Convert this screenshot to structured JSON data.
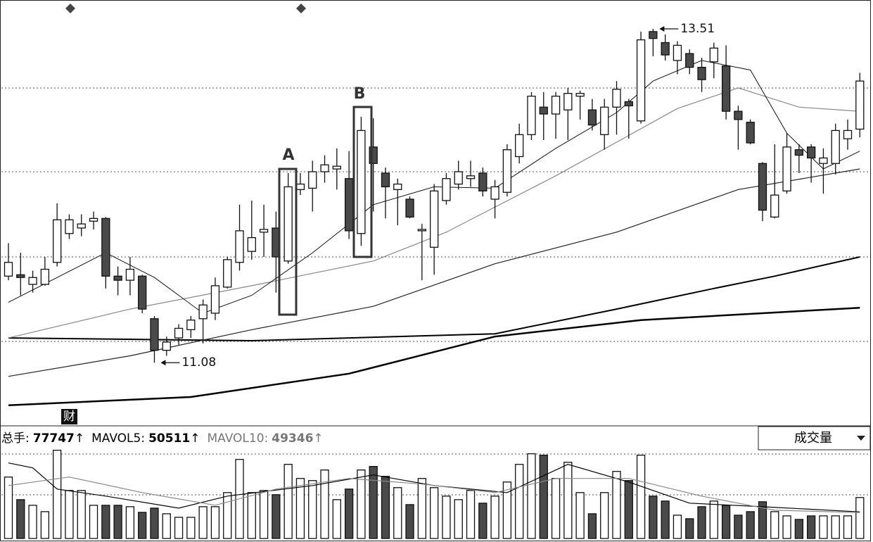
{
  "chart_data": [
    {
      "type": "candlestick",
      "open": [
        11.71,
        11.72,
        11.65,
        11.65,
        11.81,
        12.02,
        12.06,
        12.11,
        12.13,
        11.71,
        11.68,
        11.71,
        11.4,
        11.17,
        11.26,
        11.32,
        11.4,
        11.44,
        11.63,
        11.81,
        11.89,
        12.03,
        12.06,
        11.82,
        12.34,
        12.35,
        12.47,
        12.49,
        12.42,
        12.02,
        12.65,
        12.46,
        12.34,
        12.27,
        12.04,
        11.92,
        12.26,
        12.38,
        12.42,
        12.46,
        12.27,
        12.32,
        12.58,
        12.74,
        12.94,
        12.89,
        12.92,
        13.02,
        12.92,
        12.74,
        12.94,
        12.98,
        12.84,
        13.49,
        13.41,
        13.28,
        13.33,
        13.23,
        13.27,
        13.24,
        12.91,
        12.83,
        12.53,
        12.14,
        12.33,
        12.63,
        12.65,
        12.53,
        12.53,
        12.71,
        12.78
      ],
      "high": [
        11.95,
        11.88,
        11.75,
        11.85,
        12.24,
        12.16,
        12.16,
        12.18,
        12.14,
        11.78,
        11.85,
        11.72,
        11.42,
        11.27,
        11.36,
        11.42,
        11.54,
        11.7,
        11.85,
        12.23,
        12.26,
        12.23,
        12.18,
        12.46,
        12.46,
        12.55,
        12.59,
        12.64,
        12.62,
        12.87,
        12.86,
        12.5,
        12.42,
        12.29,
        12.09,
        12.38,
        12.46,
        12.55,
        12.55,
        12.5,
        12.41,
        12.67,
        12.82,
        13.05,
        13.05,
        13.05,
        13.08,
        13.06,
        13.0,
        13.0,
        13.13,
        13.0,
        13.49,
        13.51,
        13.47,
        13.42,
        13.36,
        13.3,
        13.41,
        13.39,
        12.95,
        12.85,
        12.54,
        12.67,
        12.75,
        12.67,
        12.67,
        12.64,
        12.82,
        12.85,
        13.19
      ],
      "low": [
        11.68,
        11.57,
        11.59,
        11.64,
        11.78,
        11.98,
        12.0,
        12.05,
        11.62,
        11.57,
        11.57,
        11.44,
        11.08,
        11.13,
        11.21,
        11.26,
        11.22,
        11.39,
        11.62,
        11.75,
        11.83,
        11.85,
        11.59,
        11.8,
        12.3,
        12.18,
        12.39,
        12.34,
        11.98,
        11.93,
        12.18,
        12.13,
        12.08,
        12.13,
        11.68,
        11.72,
        12.23,
        12.34,
        12.36,
        12.29,
        12.13,
        12.29,
        12.53,
        12.7,
        12.7,
        12.71,
        12.7,
        12.85,
        12.77,
        12.63,
        12.74,
        12.71,
        12.82,
        13.31,
        13.28,
        13.18,
        13.18,
        13.05,
        13.15,
        12.85,
        12.63,
        12.67,
        12.11,
        12.13,
        12.31,
        12.46,
        12.39,
        12.31,
        12.45,
        12.63,
        12.72
      ],
      "close": [
        11.81,
        11.7,
        11.7,
        11.76,
        12.12,
        12.12,
        12.09,
        12.13,
        11.71,
        11.68,
        11.76,
        11.47,
        11.17,
        11.23,
        11.33,
        11.39,
        11.5,
        11.64,
        11.83,
        12.04,
        11.99,
        12.05,
        11.85,
        12.36,
        12.38,
        12.47,
        12.52,
        12.51,
        12.04,
        12.77,
        12.53,
        12.36,
        12.38,
        12.14,
        12.05,
        12.33,
        12.42,
        12.47,
        12.44,
        12.33,
        12.36,
        12.63,
        12.74,
        13.02,
        12.89,
        13.02,
        13.04,
        13.04,
        12.81,
        12.94,
        13.07,
        12.95,
        13.43,
        13.44,
        13.32,
        13.39,
        13.23,
        13.14,
        13.37,
        12.91,
        12.85,
        12.68,
        12.19,
        12.3,
        12.65,
        12.59,
        12.57,
        12.57,
        12.77,
        12.77,
        13.13
      ],
      "ylim": [
        10.62,
        13.72
      ],
      "up_color": "#ffffff",
      "down_color": "#4a4a4a",
      "lines": [
        {
          "color": "#000000",
          "width": 2.5,
          "x": [
            0,
            15,
            28,
            40,
            52,
            70
          ],
          "values": [
            10.77,
            10.83,
            11.0,
            11.27,
            11.39,
            11.48
          ]
        },
        {
          "color": "#000000",
          "width": 2,
          "x": [
            0,
            20,
            40,
            50,
            58,
            63,
            70
          ],
          "values": [
            11.26,
            11.24,
            11.29,
            11.47,
            11.62,
            11.71,
            11.85
          ]
        },
        {
          "color": "#222222",
          "width": 1.2,
          "x": [
            0,
            10,
            20,
            30,
            40,
            50,
            60,
            70
          ],
          "values": [
            10.98,
            11.13,
            11.32,
            11.49,
            11.8,
            12.03,
            12.34,
            12.49
          ]
        },
        {
          "color": "#888888",
          "width": 1.2,
          "x": [
            0,
            10,
            20,
            30,
            36,
            45,
            55,
            60,
            65,
            70
          ],
          "values": [
            11.26,
            11.47,
            11.64,
            11.82,
            12.03,
            12.44,
            12.93,
            13.08,
            12.94,
            12.91
          ]
        },
        {
          "color": "#111111",
          "width": 1,
          "x": [
            0,
            8,
            12,
            16,
            20,
            25,
            30,
            35,
            40,
            45,
            50,
            53,
            57,
            61,
            64,
            67,
            70
          ],
          "values": [
            11.52,
            11.88,
            11.7,
            11.44,
            11.57,
            11.88,
            12.23,
            12.36,
            12.35,
            12.64,
            12.9,
            13.13,
            13.28,
            13.21,
            12.75,
            12.49,
            12.62
          ]
        }
      ],
      "annotations": [
        {
          "index": 53,
          "field": "high",
          "value": 13.51
        },
        {
          "index": 12,
          "field": "low",
          "value": 11.08
        }
      ],
      "boxes": [
        "A",
        "B"
      ],
      "marker": "财"
    },
    {
      "type": "bar",
      "values": [
        116600,
        73700,
        63000,
        50900,
        167500,
        91100,
        91100,
        63000,
        63000,
        63000,
        60300,
        49600,
        57600,
        46900,
        40200,
        40200,
        60300,
        60300,
        87100,
        150100,
        87100,
        91100,
        83100,
        140700,
        113900,
        109900,
        130000,
        73700,
        93800,
        130000,
        136700,
        117900,
        96500,
        64300,
        113900,
        96500,
        80400,
        73700,
        91100,
        67000,
        80400,
        107200,
        140700,
        160800,
        158100,
        113900,
        144700,
        87100,
        46900,
        87100,
        127300,
        109900,
        158100,
        80400,
        71000,
        44200,
        37500,
        60300,
        71000,
        63000,
        44200,
        50900,
        69700,
        50900,
        42900,
        36200,
        42900,
        42900,
        42900,
        42900,
        77747
      ],
      "ylim": [
        0,
        175000
      ],
      "lines": [
        {
          "color": "#000000",
          "width": 1.2,
          "x": [
            0,
            2,
            4,
            8,
            14,
            18,
            25,
            30,
            35,
            41,
            46,
            51,
            56,
            62,
            70
          ],
          "values": [
            143400,
            134000,
            93800,
            80400,
            57600,
            80400,
            100500,
            120600,
            100500,
            87100,
            140700,
            107200,
            67000,
            60300,
            50511
          ]
        },
        {
          "color": "#888888",
          "width": 1.2,
          "x": [
            0,
            5,
            11,
            17,
            22,
            28,
            34,
            40,
            45,
            51,
            57,
            63,
            70
          ],
          "values": [
            100500,
            116600,
            87100,
            63000,
            93800,
            113900,
            103200,
            87100,
            113900,
            113900,
            80400,
            53600,
            49346
          ]
        }
      ],
      "legend": [
        {
          "label": "总手:",
          "value": 77747,
          "trend": "↑",
          "color": "#000000"
        },
        {
          "label": "MAVOL5:",
          "value": 50511,
          "trend": "↑",
          "color": "#000000"
        },
        {
          "label": "MAVOL10:",
          "value": 49346,
          "trend": "↑",
          "color": "#777777"
        }
      ],
      "indicator": "成交量"
    }
  ]
}
